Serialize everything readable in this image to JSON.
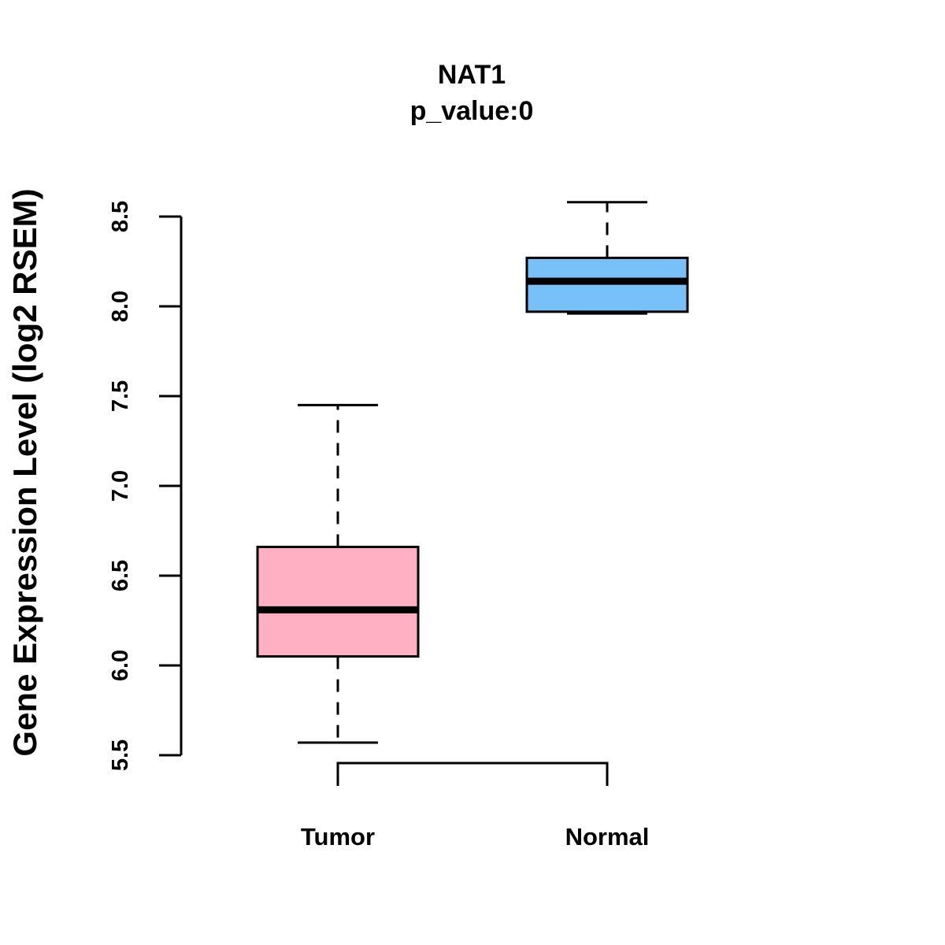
{
  "chart_data": {
    "type": "boxplot",
    "title": "NAT1",
    "subtitle": "p_value:0",
    "xlabel": "",
    "ylabel": "Gene Expression Level (log2 RSEM)",
    "ylim": [
      5.5,
      8.5
    ],
    "yticks": [
      5.5,
      6.0,
      6.5,
      7.0,
      7.5,
      8.0,
      8.5
    ],
    "ytick_labels": [
      "5.5",
      "6.0",
      "6.5",
      "7.0",
      "7.5",
      "8.0",
      "8.5"
    ],
    "grid": false,
    "groups": [
      {
        "name": "Tumor",
        "color": "#FFB0C2",
        "whisker_low": 5.57,
        "q1": 6.05,
        "median": 6.31,
        "q3": 6.66,
        "whisker_high": 7.45
      },
      {
        "name": "Normal",
        "color": "#77C0F8",
        "whisker_low": 7.96,
        "q1": 7.97,
        "median": 8.14,
        "q3": 8.27,
        "whisker_high": 8.58
      }
    ],
    "comparison_bracket": {
      "from": "Tumor",
      "to": "Normal"
    }
  }
}
